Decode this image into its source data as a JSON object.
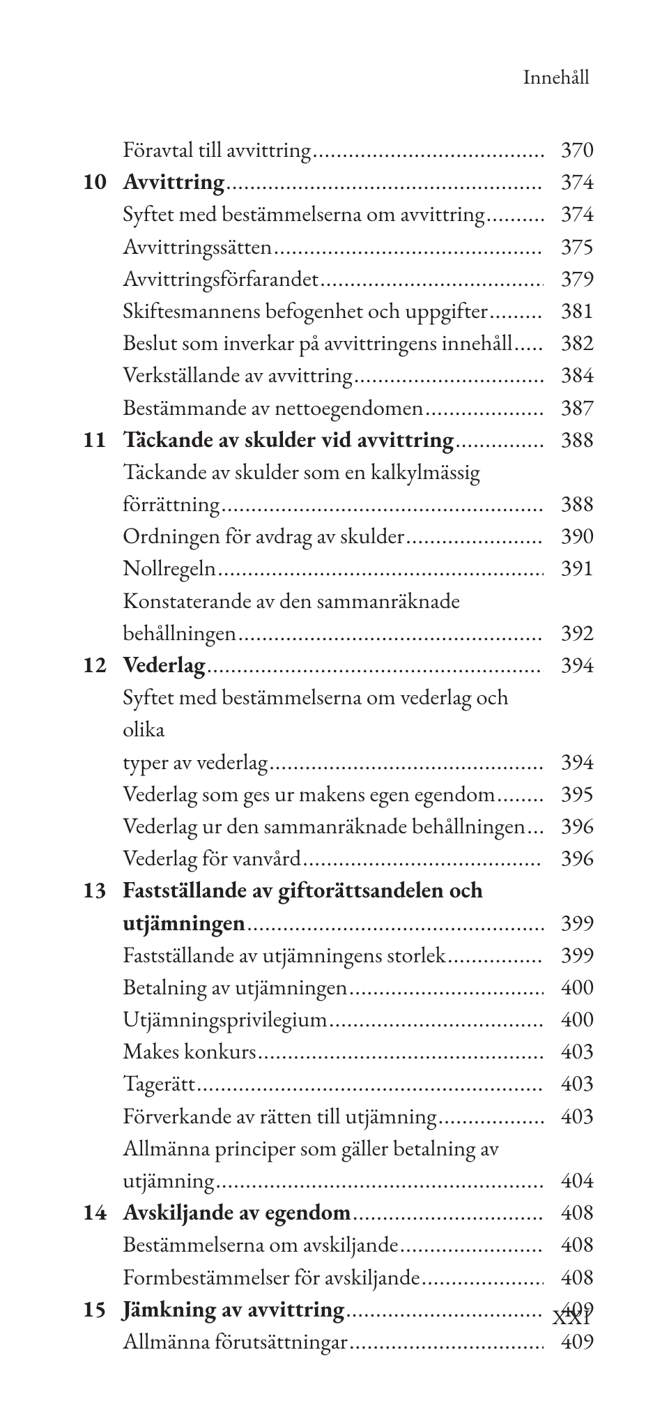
{
  "running_head": "Innehåll",
  "folio": "XXI",
  "entries": [
    {
      "num": "",
      "bold": false,
      "lines": [
        "Föravtal till avvittring"
      ],
      "page": "370"
    },
    {
      "num": "10",
      "bold": true,
      "lines": [
        "Avvittring"
      ],
      "page": "374"
    },
    {
      "num": "",
      "bold": false,
      "lines": [
        "Syftet med bestämmelserna om avvittring"
      ],
      "page": "374"
    },
    {
      "num": "",
      "bold": false,
      "lines": [
        "Avvittringssätten"
      ],
      "page": "375"
    },
    {
      "num": "",
      "bold": false,
      "lines": [
        "Avvittringsförfarandet"
      ],
      "page": "379"
    },
    {
      "num": "",
      "bold": false,
      "lines": [
        "Skiftesmannens befogenhet och uppgifter"
      ],
      "page": "381"
    },
    {
      "num": "",
      "bold": false,
      "lines": [
        "Beslut som inverkar på avvittringens innehåll"
      ],
      "page": "382"
    },
    {
      "num": "",
      "bold": false,
      "lines": [
        "Verkställande av avvittring"
      ],
      "page": "384"
    },
    {
      "num": "",
      "bold": false,
      "lines": [
        "Bestämmande av nettoegendomen"
      ],
      "page": "387"
    },
    {
      "num": "11",
      "bold": true,
      "lines": [
        "Täckande av skulder vid avvittring"
      ],
      "page": "388"
    },
    {
      "num": "",
      "bold": false,
      "lines": [
        "Täckande av skulder som en kalkylmässig",
        "förrättning"
      ],
      "page": "388"
    },
    {
      "num": "",
      "bold": false,
      "lines": [
        "Ordningen för avdrag av skulder"
      ],
      "page": "390"
    },
    {
      "num": "",
      "bold": false,
      "lines": [
        "Nollregeln"
      ],
      "page": "391"
    },
    {
      "num": "",
      "bold": false,
      "lines": [
        "Konstaterande av den sammanräknade",
        "behållningen"
      ],
      "page": "392"
    },
    {
      "num": "12",
      "bold": true,
      "lines": [
        "Vederlag"
      ],
      "page": "394"
    },
    {
      "num": "",
      "bold": false,
      "lines": [
        "Syftet med bestämmelserna om vederlag och olika",
        "typer av vederlag"
      ],
      "page": "394"
    },
    {
      "num": "",
      "bold": false,
      "lines": [
        "Vederlag som ges ur makens egen egendom"
      ],
      "page": "395"
    },
    {
      "num": "",
      "bold": false,
      "lines": [
        "Vederlag ur den sammanräknade behållningen"
      ],
      "page": "396"
    },
    {
      "num": "",
      "bold": false,
      "lines": [
        "Vederlag för vanvård"
      ],
      "page": "396"
    },
    {
      "num": "13",
      "bold": true,
      "lines": [
        "Fastställande av giftorättsandelen och",
        "utjämningen"
      ],
      "page": "399"
    },
    {
      "num": "",
      "bold": false,
      "lines": [
        "Fastställande av utjämningens storlek"
      ],
      "page": "399"
    },
    {
      "num": "",
      "bold": false,
      "lines": [
        "Betalning av utjämningen"
      ],
      "page": "400"
    },
    {
      "num": "",
      "bold": false,
      "lines": [
        "Utjämningsprivilegium"
      ],
      "page": "400"
    },
    {
      "num": "",
      "bold": false,
      "lines": [
        "Makes konkurs"
      ],
      "page": "403"
    },
    {
      "num": "",
      "bold": false,
      "lines": [
        "Tagerätt"
      ],
      "page": "403"
    },
    {
      "num": "",
      "bold": false,
      "lines": [
        "Förverkande av rätten till utjämning"
      ],
      "page": "403"
    },
    {
      "num": "",
      "bold": false,
      "lines": [
        "Allmänna principer som gäller betalning av",
        "utjämning"
      ],
      "page": "404"
    },
    {
      "num": "14",
      "bold": true,
      "lines": [
        "Avskiljande av egendom"
      ],
      "page": "408"
    },
    {
      "num": "",
      "bold": false,
      "lines": [
        "Bestämmelserna om avskiljande"
      ],
      "page": "408"
    },
    {
      "num": "",
      "bold": false,
      "lines": [
        "Formbestämmelser för avskiljande"
      ],
      "page": "408"
    },
    {
      "num": "15",
      "bold": true,
      "lines": [
        "Jämkning av avvittring"
      ],
      "page": "409"
    },
    {
      "num": "",
      "bold": false,
      "lines": [
        "Allmänna förutsättningar"
      ],
      "page": "409"
    }
  ]
}
